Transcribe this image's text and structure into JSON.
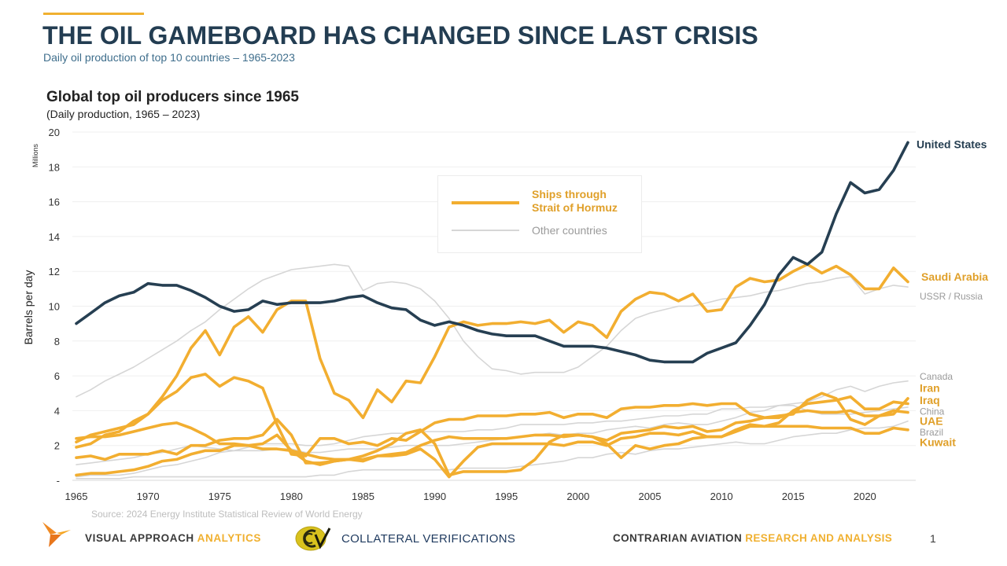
{
  "header": {
    "title": "THE OIL GAMEBOARD HAS CHANGED SINCE LAST CRISIS",
    "subtitle": "Daily oil production of top 10 countries – 1965-2023",
    "accent_color": "#f0b030",
    "title_color": "#233d52"
  },
  "chart_data": {
    "type": "line",
    "title": "Global top oil producers since 1965",
    "subtitle": "(Daily production, 1965 – 2023)",
    "xlabel": "",
    "ylabel": "Barrels per day",
    "yunit": "Millions",
    "xlim": [
      1965,
      2023
    ],
    "ylim": [
      0,
      20
    ],
    "xticks": [
      1965,
      1970,
      1975,
      1980,
      1985,
      1990,
      1995,
      2000,
      2005,
      2010,
      2015,
      2020
    ],
    "yticks": [
      0,
      2,
      4,
      6,
      8,
      10,
      12,
      14,
      16,
      18,
      20
    ],
    "ytick_labels": [
      "-",
      "2",
      "4",
      "6",
      "8",
      "10",
      "12",
      "14",
      "16",
      "18",
      "20"
    ],
    "grid": true,
    "legend": {
      "position": "top-center",
      "entries": [
        {
          "label_line1": "Ships through",
          "label_line2": "Strait of Hormuz",
          "group": "hormuz"
        },
        {
          "label_line1": "Other countries",
          "label_line2": "",
          "group": "other"
        }
      ]
    },
    "colors": {
      "us": "#263f52",
      "hormuz": "#f2ae30",
      "other": "#d6d6d6",
      "hormuz_label": "#e0a02a",
      "other_label": "#9a9a9a"
    },
    "series": [
      {
        "name": "United States",
        "group": "us",
        "x_start": 1965,
        "values": [
          9.0,
          9.6,
          10.2,
          10.6,
          10.8,
          11.3,
          11.2,
          11.2,
          10.9,
          10.5,
          10.0,
          9.7,
          9.8,
          10.3,
          10.1,
          10.2,
          10.2,
          10.2,
          10.3,
          10.5,
          10.6,
          10.2,
          9.9,
          9.8,
          9.2,
          8.9,
          9.1,
          8.9,
          8.6,
          8.4,
          8.3,
          8.3,
          8.3,
          8.0,
          7.7,
          7.7,
          7.7,
          7.6,
          7.4,
          7.2,
          6.9,
          6.8,
          6.8,
          6.8,
          7.3,
          7.6,
          7.9,
          8.9,
          10.1,
          11.8,
          12.8,
          12.4,
          13.1,
          15.3,
          17.1,
          16.5,
          16.7,
          17.8,
          19.4
        ]
      },
      {
        "name": "USSR / Russia",
        "group": "other",
        "x_start": 1965,
        "values": [
          4.8,
          5.2,
          5.7,
          6.1,
          6.5,
          7.0,
          7.5,
          8.0,
          8.6,
          9.1,
          9.8,
          10.4,
          11.0,
          11.5,
          11.8,
          12.1,
          12.2,
          12.3,
          12.4,
          12.3,
          10.9,
          11.3,
          11.4,
          11.3,
          11.0,
          10.3,
          9.3,
          8.0,
          7.1,
          6.4,
          6.3,
          6.1,
          6.2,
          6.2,
          6.2,
          6.5,
          7.1,
          7.7,
          8.6,
          9.3,
          9.6,
          9.8,
          10.0,
          10.0,
          10.2,
          10.4,
          10.5,
          10.6,
          10.8,
          10.9,
          11.1,
          11.3,
          11.4,
          11.6,
          11.7,
          10.7,
          11.0,
          11.2,
          11.1
        ]
      },
      {
        "name": "Canada",
        "group": "other",
        "x_start": 1965,
        "values": [
          0.9,
          1.0,
          1.1,
          1.2,
          1.3,
          1.5,
          1.6,
          1.8,
          2.0,
          1.9,
          1.8,
          1.7,
          1.7,
          1.7,
          1.8,
          1.8,
          1.6,
          1.6,
          1.7,
          1.8,
          1.8,
          1.8,
          1.9,
          2.0,
          2.0,
          2.0,
          2.0,
          2.1,
          2.2,
          2.3,
          2.4,
          2.5,
          2.6,
          2.7,
          2.6,
          2.7,
          2.7,
          2.9,
          3.0,
          3.1,
          3.0,
          3.2,
          3.3,
          3.2,
          3.2,
          3.4,
          3.6,
          3.9,
          4.0,
          4.3,
          4.4,
          4.5,
          4.8,
          5.2,
          5.4,
          5.1,
          5.4,
          5.6,
          5.7
        ]
      },
      {
        "name": "China",
        "group": "other",
        "x_start": 1965,
        "values": [
          0.2,
          0.3,
          0.3,
          0.3,
          0.4,
          0.6,
          0.8,
          0.9,
          1.1,
          1.3,
          1.6,
          1.7,
          1.9,
          2.1,
          2.1,
          2.1,
          2.0,
          2.0,
          2.1,
          2.3,
          2.5,
          2.6,
          2.7,
          2.7,
          2.8,
          2.8,
          2.8,
          2.8,
          2.9,
          2.9,
          3.0,
          3.2,
          3.2,
          3.2,
          3.2,
          3.3,
          3.3,
          3.4,
          3.4,
          3.5,
          3.6,
          3.7,
          3.7,
          3.8,
          3.8,
          4.1,
          4.1,
          4.2,
          4.2,
          4.3,
          4.3,
          4.0,
          3.8,
          3.8,
          3.8,
          3.9,
          4.0,
          4.1,
          4.2
        ]
      },
      {
        "name": "Brazil",
        "group": "other",
        "x_start": 1965,
        "values": [
          0.1,
          0.1,
          0.1,
          0.1,
          0.2,
          0.2,
          0.2,
          0.2,
          0.2,
          0.2,
          0.2,
          0.2,
          0.2,
          0.2,
          0.2,
          0.2,
          0.2,
          0.3,
          0.3,
          0.5,
          0.6,
          0.6,
          0.6,
          0.6,
          0.6,
          0.6,
          0.6,
          0.7,
          0.7,
          0.7,
          0.7,
          0.8,
          0.9,
          1.0,
          1.1,
          1.3,
          1.3,
          1.5,
          1.6,
          1.5,
          1.7,
          1.8,
          1.8,
          1.9,
          2.0,
          2.1,
          2.2,
          2.1,
          2.1,
          2.3,
          2.5,
          2.6,
          2.7,
          2.7,
          2.9,
          3.0,
          3.0,
          3.1,
          3.4
        ]
      },
      {
        "name": "Saudi Arabia",
        "group": "hormuz",
        "x_start": 1965,
        "values": [
          2.2,
          2.6,
          2.8,
          3.0,
          3.2,
          3.8,
          4.8,
          6.0,
          7.6,
          8.6,
          7.2,
          8.8,
          9.4,
          8.5,
          9.8,
          10.3,
          10.3,
          7.0,
          5.0,
          4.6,
          3.6,
          5.2,
          4.5,
          5.7,
          5.6,
          7.1,
          8.8,
          9.1,
          8.9,
          9.0,
          9.0,
          9.1,
          9.0,
          9.2,
          8.5,
          9.1,
          8.9,
          8.2,
          9.7,
          10.4,
          10.8,
          10.7,
          10.3,
          10.7,
          9.7,
          9.8,
          11.1,
          11.6,
          11.4,
          11.5,
          12.0,
          12.4,
          11.9,
          12.3,
          11.8,
          11.0,
          11.0,
          12.2,
          11.4
        ]
      },
      {
        "name": "Iran",
        "group": "hormuz",
        "x_start": 1965,
        "values": [
          1.9,
          2.1,
          2.6,
          2.8,
          3.4,
          3.8,
          4.6,
          5.1,
          5.9,
          6.1,
          5.4,
          5.9,
          5.7,
          5.3,
          3.2,
          1.5,
          1.4,
          2.4,
          2.4,
          2.1,
          2.2,
          2.0,
          2.4,
          2.3,
          2.8,
          3.3,
          3.5,
          3.5,
          3.7,
          3.7,
          3.7,
          3.8,
          3.8,
          3.9,
          3.6,
          3.8,
          3.8,
          3.6,
          4.1,
          4.2,
          4.2,
          4.3,
          4.3,
          4.4,
          4.3,
          4.4,
          4.4,
          3.8,
          3.6,
          3.7,
          3.8,
          4.6,
          5.0,
          4.7,
          3.5,
          3.2,
          3.7,
          3.8,
          4.7
        ]
      },
      {
        "name": "Iraq",
        "group": "hormuz",
        "x_start": 1965,
        "values": [
          1.3,
          1.4,
          1.2,
          1.5,
          1.5,
          1.5,
          1.7,
          1.5,
          2.0,
          2.0,
          2.3,
          2.4,
          2.4,
          2.6,
          3.5,
          2.6,
          1.0,
          1.0,
          1.1,
          1.2,
          1.4,
          1.7,
          2.1,
          2.7,
          2.9,
          2.1,
          0.3,
          0.5,
          0.5,
          0.5,
          0.5,
          0.6,
          1.2,
          2.2,
          2.6,
          2.6,
          2.5,
          2.1,
          1.3,
          2.0,
          1.8,
          2.0,
          2.1,
          2.4,
          2.5,
          2.5,
          2.8,
          3.1,
          3.1,
          3.3,
          4.0,
          4.4,
          4.5,
          4.6,
          4.8,
          4.1,
          4.1,
          4.5,
          4.4
        ]
      },
      {
        "name": "UAE",
        "group": "hormuz",
        "x_start": 1965,
        "values": [
          0.3,
          0.4,
          0.4,
          0.5,
          0.6,
          0.8,
          1.1,
          1.2,
          1.5,
          1.7,
          1.7,
          2.0,
          2.0,
          1.8,
          1.8,
          1.7,
          1.5,
          1.3,
          1.2,
          1.2,
          1.2,
          1.4,
          1.5,
          1.6,
          2.0,
          2.3,
          2.5,
          2.4,
          2.4,
          2.4,
          2.4,
          2.5,
          2.6,
          2.6,
          2.5,
          2.6,
          2.5,
          2.3,
          2.7,
          2.8,
          2.9,
          3.1,
          3.0,
          3.1,
          2.8,
          2.9,
          3.3,
          3.4,
          3.6,
          3.6,
          3.9,
          4.0,
          3.9,
          3.9,
          4.0,
          3.7,
          3.7,
          4.0,
          3.9
        ]
      },
      {
        "name": "Kuwait",
        "group": "hormuz",
        "x_start": 1965,
        "values": [
          2.4,
          2.5,
          2.5,
          2.6,
          2.8,
          3.0,
          3.2,
          3.3,
          3.0,
          2.6,
          2.1,
          2.1,
          2.0,
          2.1,
          2.6,
          1.7,
          1.1,
          0.9,
          1.1,
          1.2,
          1.1,
          1.4,
          1.4,
          1.5,
          1.8,
          1.2,
          0.2,
          1.1,
          1.9,
          2.1,
          2.1,
          2.1,
          2.1,
          2.1,
          2.0,
          2.2,
          2.2,
          2.0,
          2.4,
          2.5,
          2.7,
          2.7,
          2.6,
          2.8,
          2.5,
          2.5,
          2.9,
          3.2,
          3.1,
          3.1,
          3.1,
          3.1,
          3.0,
          3.0,
          3.0,
          2.7,
          2.7,
          3.0,
          2.9
        ]
      }
    ],
    "end_labels": [
      {
        "text": "United States",
        "series": "United States",
        "style": "us",
        "label_value": 19.3
      },
      {
        "text": "Saudi Arabia",
        "series": "Saudi Arabia",
        "style": "hormuz",
        "label_value": 11.7
      },
      {
        "text": "USSR / Russia",
        "series": "USSR / Russia",
        "style": "other",
        "label_value": 10.6
      },
      {
        "text": "Canada",
        "series": "Canada",
        "style": "other",
        "label_value": 6.0
      },
      {
        "text": "Iran",
        "series": "Iran",
        "style": "hormuz",
        "label_value": 5.3
      },
      {
        "text": "Iraq",
        "series": "Iraq",
        "style": "hormuz",
        "label_value": 4.6
      },
      {
        "text": "China",
        "series": "China",
        "style": "other",
        "label_value": 4.0
      },
      {
        "text": "UAE",
        "series": "UAE",
        "style": "hormuz",
        "label_value": 3.4
      },
      {
        "text": "Brazil",
        "series": "Brazil",
        "style": "other",
        "label_value": 2.8
      },
      {
        "text": "Kuwait",
        "series": "Kuwait",
        "style": "hormuz",
        "label_value": 2.2
      }
    ]
  },
  "source": "Source: 2024 Energy Institute Statistical Review of World Energy",
  "footer": {
    "left_brand_dark": "VISUAL APPROACH ",
    "left_brand_accent": "ANALYTICS",
    "middle_brand": "COLLATERAL  VERIFICATIONS",
    "right_brand_dark": "CONTRARIAN AVIATION ",
    "right_brand_accent": "RESEARCH AND ANALYSIS",
    "page_number": "1"
  }
}
